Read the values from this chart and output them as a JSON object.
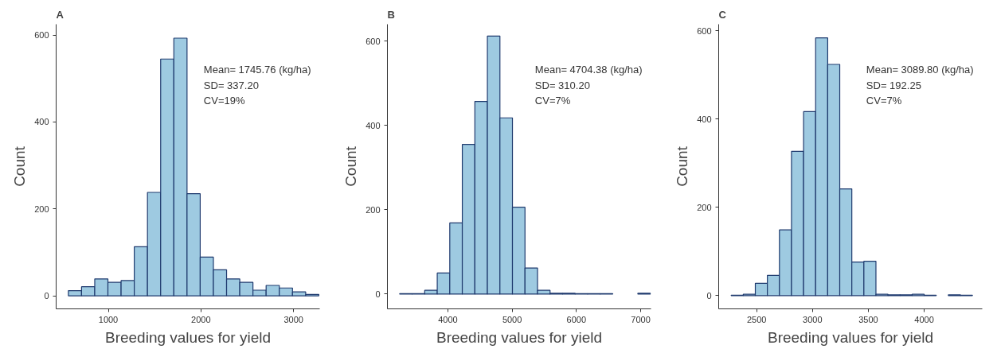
{
  "chart_data": [
    {
      "type": "histogram",
      "title": "A",
      "xlabel": "Breeding values for yield",
      "ylabel": "Count",
      "color": "#9ecae1",
      "bins": [
        569,
        711.3,
        853.6,
        995.9,
        1138.2,
        1280.5,
        1422.8,
        1565.1,
        1707.4,
        1849.7,
        1992,
        2134.3,
        2276.6,
        2418.9,
        2561.2,
        2703.5,
        2845.8,
        2988.1,
        3130.4,
        3272.7
      ],
      "values": [
        12,
        21,
        39,
        31,
        35,
        113,
        238,
        545,
        593,
        235,
        89,
        60,
        39,
        31,
        13,
        24,
        18,
        9,
        3
      ],
      "xlim": [
        437,
        3282
      ],
      "ylim": [
        -30,
        625
      ],
      "xticks": [
        1000,
        2000,
        3000
      ],
      "yticks": [
        0,
        200,
        400,
        600
      ],
      "grid": false,
      "annotations": [
        "Mean= 1745.76 (kg/ha)",
        "SD= 337.20",
        "CV=19%"
      ]
    },
    {
      "type": "histogram",
      "title": "B",
      "xlabel": "Breeding values for yield",
      "ylabel": "Count",
      "color": "#9ecae1",
      "bins": [
        3250,
        3445,
        3640,
        3835,
        4030,
        4225,
        4420,
        4615,
        4810,
        5005,
        5200,
        5395,
        5590,
        5785,
        5980,
        6175,
        6370,
        6565,
        6760,
        6955,
        7150
      ],
      "values": [
        1,
        1,
        9,
        50,
        169,
        355,
        457,
        612,
        418,
        206,
        62,
        9,
        2,
        2,
        1,
        1,
        1,
        0,
        0,
        2
      ],
      "xlim": [
        3060,
        7160
      ],
      "ylim": [
        -35,
        640
      ],
      "xticks": [
        4000,
        5000,
        6000,
        7000
      ],
      "yticks": [
        0,
        200,
        400,
        600
      ],
      "grid": false,
      "annotations": [
        "Mean= 4704.38 (kg/ha)",
        "SD= 310.20",
        "CV=7%"
      ]
    },
    {
      "type": "histogram",
      "title": "C",
      "xlabel": "Breeding values for yield",
      "ylabel": "Count",
      "color": "#9ecae1",
      "bins": [
        2272,
        2380,
        2488,
        2596,
        2704,
        2812,
        2920,
        3028,
        3136,
        3244,
        3352,
        3460,
        3568,
        3676,
        3784,
        3892,
        4000,
        4108,
        4216,
        4324,
        4432
      ],
      "values": [
        1,
        3,
        28,
        46,
        149,
        327,
        417,
        584,
        524,
        242,
        76,
        78,
        3,
        2,
        2,
        3,
        1,
        0,
        2,
        1
      ],
      "xlim": [
        2160,
        4520
      ],
      "ylim": [
        -30,
        615
      ],
      "xticks": [
        2500,
        3000,
        3500,
        4000
      ],
      "yticks": [
        0,
        200,
        400,
        600
      ],
      "grid": false,
      "annotations": [
        "Mean= 3089.80 (kg/ha)",
        "SD= 192.25",
        "CV=7%"
      ]
    }
  ]
}
